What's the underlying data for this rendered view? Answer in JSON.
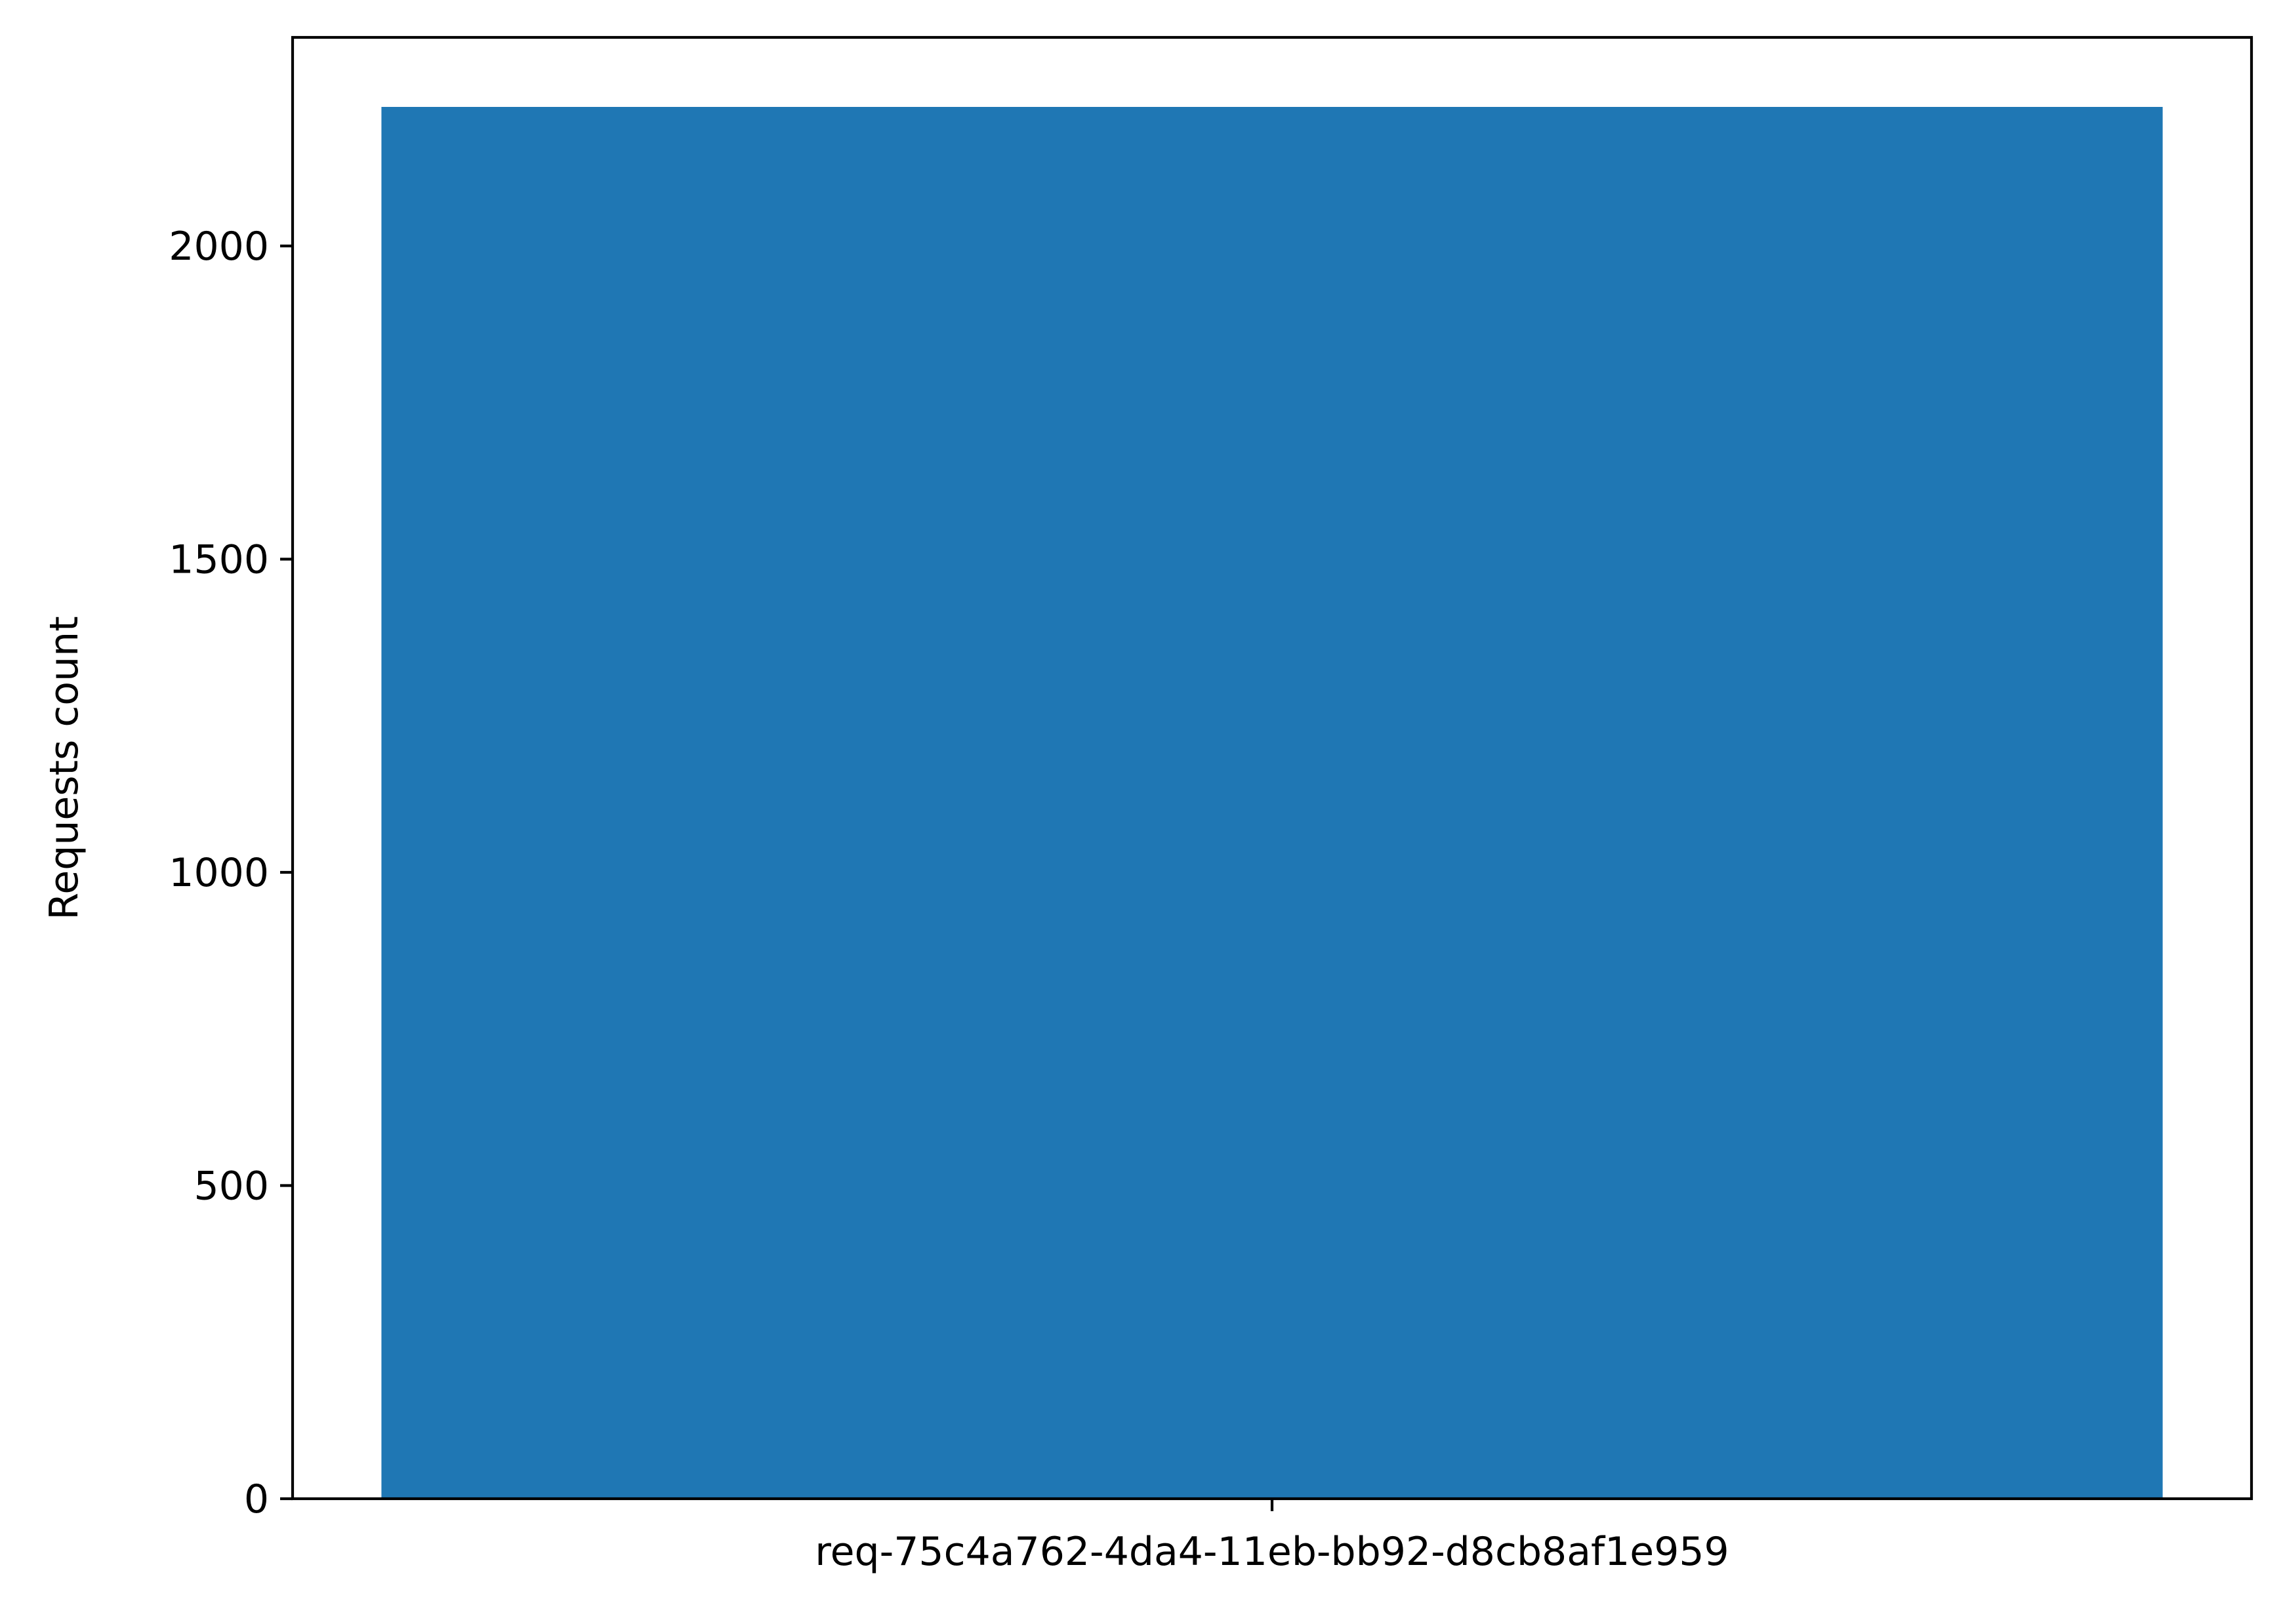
{
  "chart_data": {
    "type": "bar",
    "categories": [
      "req-75c4a762-4da4-11eb-bb92-d8cb8af1e959"
    ],
    "values": [
      2222
    ],
    "title": "",
    "xlabel": "",
    "ylabel": "Requests count",
    "ylim": [
      0,
      2333
    ],
    "yticks": [
      0,
      500,
      1000,
      1500,
      2000
    ],
    "ytick_labels": [
      "0",
      "500",
      "1000",
      "1500",
      "2000"
    ],
    "grid": false,
    "bar_color": "#1f77b4"
  }
}
